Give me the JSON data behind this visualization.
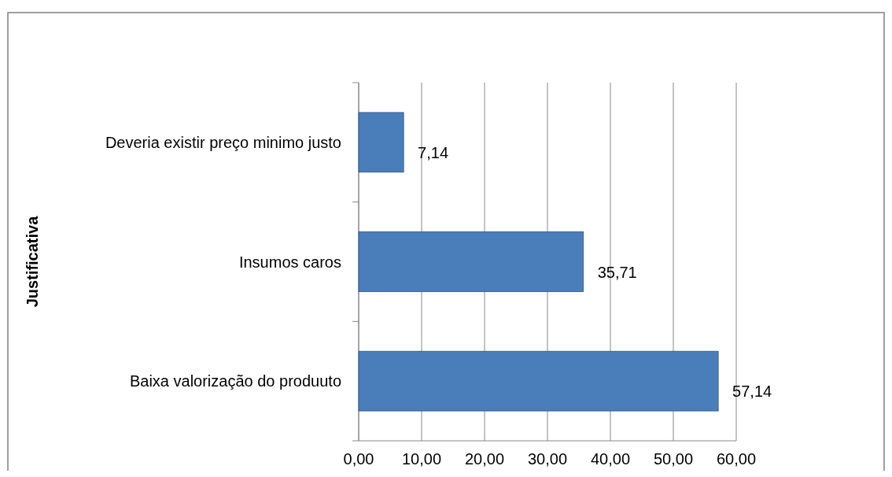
{
  "chart_data": {
    "type": "bar",
    "orientation": "horizontal",
    "ylabel": "Justificativa",
    "categories": [
      "Deveria existir preço minimo justo",
      "Insumos caros",
      "Baixa valorização do produuto"
    ],
    "values": [
      7.14,
      35.71,
      57.14
    ],
    "color": "#4a7ebb",
    "value_labels": [
      "7,14",
      "35,71",
      "57,14"
    ],
    "xlim": [
      0,
      60
    ],
    "xticks": [
      {
        "value": 0,
        "label": "0,00"
      },
      {
        "value": 10,
        "label": "10,00"
      },
      {
        "value": 20,
        "label": "20,00"
      },
      {
        "value": 30,
        "label": "30,00"
      },
      {
        "value": 40,
        "label": "40,00"
      },
      {
        "value": 50,
        "label": "50,00"
      },
      {
        "value": 60,
        "label": "60,00"
      }
    ],
    "grid": "x"
  }
}
